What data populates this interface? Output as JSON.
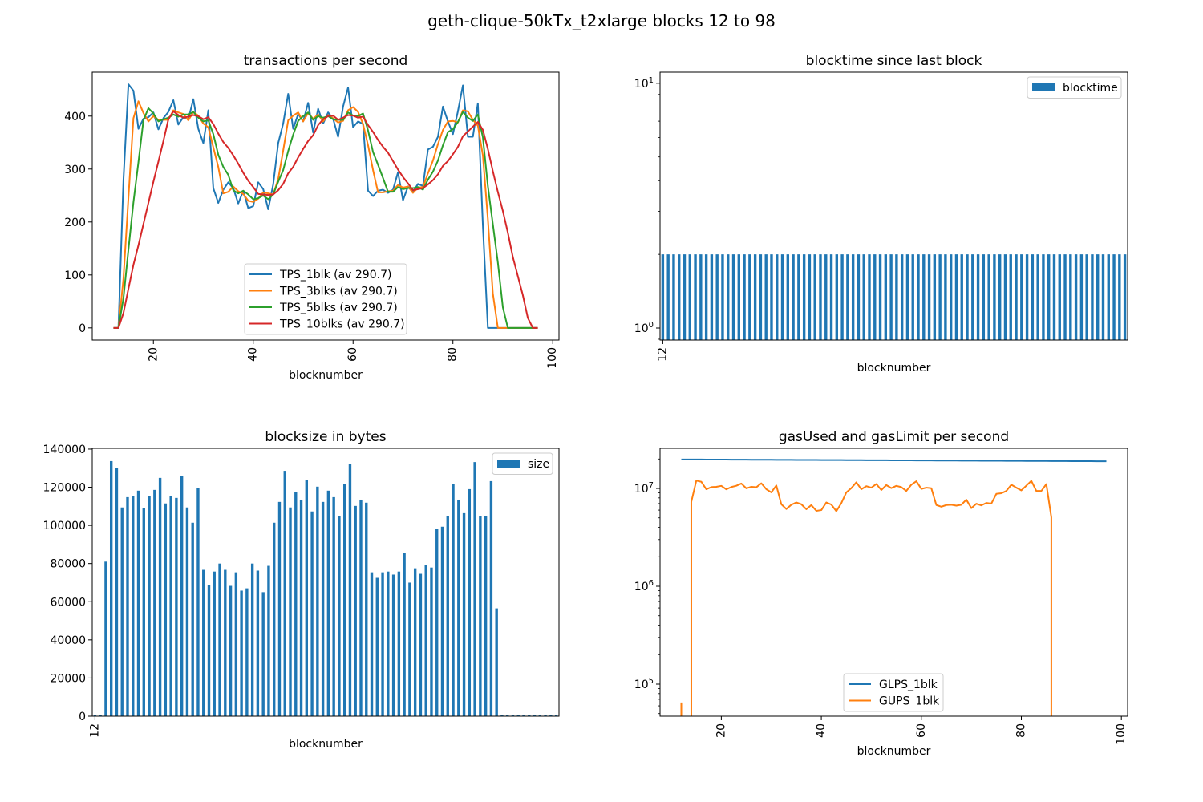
{
  "suptitle": "geth-clique-50kTx_t2xlarge blocks 12 to 98",
  "chart_data": [
    {
      "type": "line",
      "title": "transactions per second",
      "xlabel": "blocknumber",
      "ylabel": "",
      "xscale": "linear",
      "yscale": "linear",
      "xlim": [
        7.75,
        101.25
      ],
      "ylim": [
        -23,
        483
      ],
      "xticks": [
        20,
        40,
        60,
        80,
        100
      ],
      "yticks": [
        0,
        100,
        200,
        300,
        400
      ],
      "grid": false,
      "legend": "lower center",
      "x": [
        12,
        13,
        14,
        15,
        16,
        17,
        18,
        19,
        20,
        21,
        22,
        23,
        24,
        25,
        26,
        27,
        28,
        29,
        30,
        31,
        32,
        33,
        34,
        35,
        36,
        37,
        38,
        39,
        40,
        41,
        42,
        43,
        44,
        45,
        46,
        47,
        48,
        49,
        50,
        51,
        52,
        53,
        54,
        55,
        56,
        57,
        58,
        59,
        60,
        61,
        62,
        63,
        64,
        65,
        66,
        67,
        68,
        69,
        70,
        71,
        72,
        73,
        74,
        75,
        76,
        77,
        78,
        79,
        80,
        81,
        82,
        83,
        84,
        85,
        86,
        87,
        88,
        89,
        90,
        91,
        92,
        93,
        94,
        95,
        96,
        97
      ],
      "series": [
        {
          "name": "TPS_1blk (av 290.7)",
          "color": "#1f77b4",
          "values": [
            0,
            0,
            279,
            460,
            448,
            376,
            395,
            398,
            407,
            375,
            396,
            408,
            430,
            384,
            398,
            394,
            432,
            376,
            349,
            411,
            264,
            236,
            261,
            275,
            264,
            235,
            259,
            226,
            230,
            275,
            262,
            224,
            271,
            349,
            386,
            442,
            376,
            404,
            390,
            425,
            369,
            414,
            386,
            407,
            395,
            361,
            418,
            454,
            379,
            390,
            385,
            259,
            249,
            259,
            261,
            255,
            261,
            294,
            241,
            267,
            257,
            272,
            268,
            337,
            342,
            361,
            418,
            390,
            366,
            409,
            458,
            361,
            361,
            424,
            194,
            0,
            0,
            0,
            0,
            0,
            0,
            0,
            0,
            0,
            0,
            0
          ]
        },
        {
          "name": "TPS_3blks (av 290.7)",
          "color": "#ff7f0e",
          "values": [
            0,
            0,
            93,
            246,
            396,
            428,
            406,
            390,
            400,
            393,
            393,
            393,
            411,
            407,
            404,
            392,
            408,
            401,
            386,
            379,
            341,
            304,
            254,
            257,
            267,
            258,
            253,
            240,
            238,
            244,
            256,
            254,
            252,
            281,
            335,
            392,
            401,
            407,
            390,
            406,
            395,
            403,
            390,
            402,
            396,
            388,
            391,
            411,
            417,
            408,
            385,
            345,
            298,
            256,
            256,
            258,
            259,
            270,
            265,
            267,
            255,
            265,
            266,
            292,
            316,
            347,
            374,
            390,
            391,
            388,
            411,
            409,
            393,
            382,
            326,
            206,
            65,
            0,
            0,
            0,
            0,
            0,
            0,
            0,
            0,
            0
          ]
        },
        {
          "name": "TPS_5blks (av 290.7)",
          "color": "#2ca02c",
          "values": [
            0,
            0,
            56,
            148,
            237,
            313,
            392,
            415,
            405,
            390,
            394,
            397,
            403,
            399,
            403,
            403,
            408,
            397,
            390,
            392,
            366,
            327,
            304,
            289,
            260,
            254,
            259,
            252,
            243,
            245,
            250,
            243,
            252,
            276,
            298,
            334,
            365,
            391,
            400,
            407,
            393,
            400,
            397,
            400,
            394,
            393,
            393,
            407,
            401,
            400,
            405,
            373,
            332,
            308,
            283,
            257,
            257,
            266,
            262,
            264,
            264,
            266,
            261,
            280,
            295,
            316,
            345,
            370,
            375,
            389,
            408,
            397,
            391,
            403,
            360,
            268,
            196,
            124,
            39,
            0,
            0,
            0,
            0,
            0,
            0,
            0
          ]
        },
        {
          "name": "TPS_10blks (av 290.7)",
          "color": "#d62728",
          "values": [
            0,
            0,
            28,
            74,
            119,
            156,
            196,
            236,
            276,
            314,
            353,
            394,
            409,
            402,
            397,
            399,
            402,
            400,
            394,
            398,
            385,
            367,
            351,
            340,
            326,
            310,
            293,
            278,
            266,
            253,
            252,
            251,
            252,
            260,
            272,
            292,
            304,
            322,
            338,
            353,
            364,
            383,
            394,
            400,
            401,
            393,
            397,
            402,
            401,
            397,
            399,
            383,
            370,
            355,
            342,
            331,
            315,
            299,
            285,
            273,
            260,
            262,
            264,
            271,
            279,
            290,
            306,
            315,
            328,
            342,
            362,
            371,
            380,
            389,
            374,
            338,
            296,
            257,
            221,
            180,
            134,
            98,
            62,
            19,
            0,
            0
          ]
        }
      ]
    },
    {
      "type": "bar",
      "title": "blocktime since last block",
      "xlabel": "blocknumber",
      "ylabel": "",
      "yscale": "log",
      "ylim": [
        0.893,
        11.1
      ],
      "xtick_labels": [
        "12"
      ],
      "yticks": [
        1,
        10
      ],
      "grid": false,
      "legend": "upper right",
      "categories": [
        12,
        13,
        14,
        15,
        16,
        17,
        18,
        19,
        20,
        21,
        22,
        23,
        24,
        25,
        26,
        27,
        28,
        29,
        30,
        31,
        32,
        33,
        34,
        35,
        36,
        37,
        38,
        39,
        40,
        41,
        42,
        43,
        44,
        45,
        46,
        47,
        48,
        49,
        50,
        51,
        52,
        53,
        54,
        55,
        56,
        57,
        58,
        59,
        60,
        61,
        62,
        63,
        64,
        65,
        66,
        67,
        68,
        69,
        70,
        71,
        72,
        73,
        74,
        75,
        76,
        77,
        78,
        79,
        80,
        81,
        82,
        83,
        84,
        85,
        86,
        87,
        88,
        89,
        90,
        91,
        92,
        93,
        94,
        95,
        96,
        97
      ],
      "series": [
        {
          "name": "blocktime",
          "color": "#1f77b4",
          "values": [
            2,
            2,
            2,
            2,
            2,
            2,
            2,
            2,
            2,
            2,
            2,
            2,
            2,
            2,
            2,
            2,
            2,
            2,
            2,
            2,
            2,
            2,
            2,
            2,
            2,
            2,
            2,
            2,
            2,
            2,
            2,
            2,
            2,
            2,
            2,
            2,
            2,
            2,
            2,
            2,
            2,
            2,
            2,
            2,
            2,
            2,
            2,
            2,
            2,
            2,
            2,
            2,
            2,
            2,
            2,
            2,
            2,
            2,
            2,
            2,
            2,
            2,
            2,
            2,
            2,
            2,
            2,
            2,
            2,
            2,
            2,
            2,
            2,
            2,
            2,
            2,
            2,
            2,
            2,
            2,
            2,
            2,
            2,
            2,
            2,
            2
          ]
        }
      ]
    },
    {
      "type": "bar",
      "title": "blocksize in bytes",
      "xlabel": "blocknumber",
      "ylabel": "",
      "yscale": "linear",
      "ylim": [
        0,
        140400
      ],
      "xtick_labels": [
        "12"
      ],
      "yticks": [
        0,
        20000,
        40000,
        60000,
        80000,
        100000,
        120000,
        140000
      ],
      "grid": false,
      "legend": "upper right",
      "categories": [
        12,
        13,
        14,
        15,
        16,
        17,
        18,
        19,
        20,
        21,
        22,
        23,
        24,
        25,
        26,
        27,
        28,
        29,
        30,
        31,
        32,
        33,
        34,
        35,
        36,
        37,
        38,
        39,
        40,
        41,
        42,
        43,
        44,
        45,
        46,
        47,
        48,
        49,
        50,
        51,
        52,
        53,
        54,
        55,
        56,
        57,
        58,
        59,
        60,
        61,
        62,
        63,
        64,
        65,
        66,
        67,
        68,
        69,
        70,
        71,
        72,
        73,
        74,
        75,
        76,
        77,
        78,
        79,
        80,
        81,
        82,
        83,
        84,
        85,
        86,
        87,
        88,
        89,
        90,
        91,
        92,
        93,
        94,
        95,
        96,
        97
      ],
      "series": [
        {
          "name": "size",
          "color": "#1f77b4",
          "values": [
            610,
            610,
            81000,
            133700,
            130300,
            109400,
            114800,
            115600,
            118200,
            108900,
            115200,
            118600,
            124900,
            111500,
            115600,
            114400,
            125700,
            109400,
            101400,
            119400,
            76700,
            68700,
            75800,
            80000,
            76700,
            68300,
            75400,
            65800,
            67000,
            80000,
            76300,
            65000,
            78800,
            101400,
            112300,
            128600,
            109400,
            117300,
            113500,
            123600,
            107300,
            120300,
            112300,
            118200,
            114800,
            104800,
            121500,
            132000,
            110200,
            113500,
            111900,
            75400,
            72500,
            75400,
            75800,
            74200,
            75800,
            85500,
            70000,
            77500,
            74600,
            79200,
            77900,
            98000,
            99300,
            104800,
            121500,
            113500,
            106400,
            119000,
            133200,
            104800,
            104800,
            123200,
            56500,
            610,
            610,
            610,
            610,
            610,
            610,
            610,
            610,
            610,
            610,
            610
          ]
        }
      ]
    },
    {
      "type": "line",
      "title": "gasUsed and gasLimit per second",
      "xlabel": "blocknumber",
      "ylabel": "",
      "xscale": "linear",
      "yscale": "log",
      "xlim": [
        7.75,
        101.25
      ],
      "ylim": [
        47000,
        25700000
      ],
      "xticks": [
        20,
        40,
        60,
        80,
        100
      ],
      "yticks": [
        100000,
        1000000,
        10000000
      ],
      "grid": false,
      "legend": "lower center",
      "x": [
        12,
        13,
        14,
        15,
        16,
        17,
        18,
        19,
        20,
        21,
        22,
        23,
        24,
        25,
        26,
        27,
        28,
        29,
        30,
        31,
        32,
        33,
        34,
        35,
        36,
        37,
        38,
        39,
        40,
        41,
        42,
        43,
        44,
        45,
        46,
        47,
        48,
        49,
        50,
        51,
        52,
        53,
        54,
        55,
        56,
        57,
        58,
        59,
        60,
        61,
        62,
        63,
        64,
        65,
        66,
        67,
        68,
        69,
        70,
        71,
        72,
        73,
        74,
        75,
        76,
        77,
        78,
        79,
        80,
        81,
        82,
        83,
        84,
        85,
        86,
        87,
        88,
        89,
        90,
        91,
        92,
        93,
        94,
        95,
        96,
        97
      ],
      "series": [
        {
          "name": "GLPS_1blk",
          "color": "#1f77b4",
          "values": [
            19800000.0,
            19790000.0,
            19780000.0,
            19770000.0,
            19760000.0,
            19750000.0,
            19740000.0,
            19730000.0,
            19720000.0,
            19710000.0,
            19700000.0,
            19690000.0,
            19680000.0,
            19670000.0,
            19660000.0,
            19650000.0,
            19640000.0,
            19630000.0,
            19620000.0,
            19610000.0,
            19600000.0,
            19590000.0,
            19580000.0,
            19570000.0,
            19560000.0,
            19550000.0,
            19540000.0,
            19530000.0,
            19520000.0,
            19510000.0,
            19500000.0,
            19490000.0,
            19480000.0,
            19470000.0,
            19460000.0,
            19450000.0,
            19440000.0,
            19430000.0,
            19420000.0,
            19410000.0,
            19400000.0,
            19390000.0,
            19380000.0,
            19370000.0,
            19360000.0,
            19350000.0,
            19340000.0,
            19330000.0,
            19320000.0,
            19310000.0,
            19300000.0,
            19290000.0,
            19280000.0,
            19270000.0,
            19260000.0,
            19250000.0,
            19240000.0,
            19230000.0,
            19220000.0,
            19210000.0,
            19200000.0,
            19190000.0,
            19180000.0,
            19170000.0,
            19160000.0,
            19150000.0,
            19140000.0,
            19130000.0,
            19120000.0,
            19110000.0,
            19100000.0,
            19090000.0,
            19080000.0,
            19070000.0,
            19060000.0,
            19050000.0,
            19040000.0,
            19030000.0,
            19020000.0,
            19010000.0,
            19000000.0,
            18990000.0,
            18980000.0,
            18970000.0,
            18960000.0,
            18950000.0
          ]
        },
        {
          "name": "GUPS_1blk",
          "color": "#ff7f0e",
          "values": [
            65000,
            0,
            7280000.0,
            12010000.0,
            11690000.0,
            9810000.0,
            10310000.0,
            10390000.0,
            10620000.0,
            9790000.0,
            10340000.0,
            10650000.0,
            11220000.0,
            10020000.0,
            10390000.0,
            10280000.0,
            11280000.0,
            9810000.0,
            9110000.0,
            10730000.0,
            6890000.0,
            6160000.0,
            6810000.0,
            7180000.0,
            6890000.0,
            6130000.0,
            6760000.0,
            5900000.0,
            6000000.0,
            7180000.0,
            6840000.0,
            5850000.0,
            7070000.0,
            9110000.0,
            10070000.0,
            11540000.0,
            9810000.0,
            10540000.0,
            10180000.0,
            11090000.0,
            9630000.0,
            10810000.0,
            10070000.0,
            10620000.0,
            10310000.0,
            9420000.0,
            10910000.0,
            11850000.0,
            9890000.0,
            10180000.0,
            10050000.0,
            6760000.0,
            6500000.0,
            6760000.0,
            6810000.0,
            6660000.0,
            6810000.0,
            7670000.0,
            6290000.0,
            6970000.0,
            6710000.0,
            7100000.0,
            6990000.0,
            8800000.0,
            8930000.0,
            9420000.0,
            10910000.0,
            10180000.0,
            9550000.0,
            10670000.0,
            11950000.0,
            9420000.0,
            9420000.0,
            11070000.0,
            5060000.0,
            0,
            0,
            0,
            0,
            0,
            0,
            0,
            0,
            0,
            0,
            0
          ]
        }
      ]
    }
  ]
}
